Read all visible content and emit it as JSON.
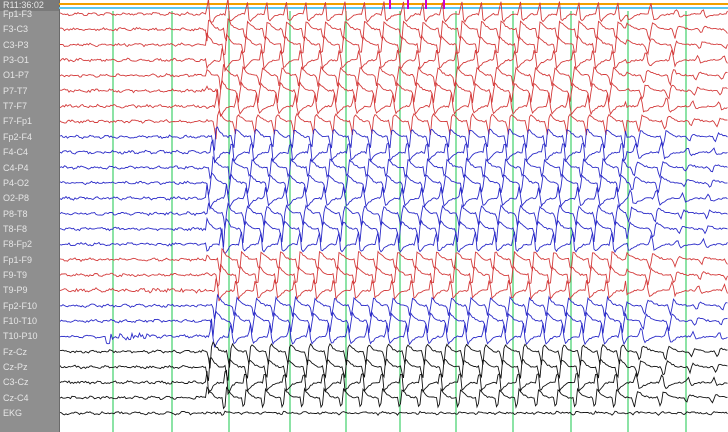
{
  "viewer": {
    "timestamp": "R11:36:02",
    "channels": [
      {
        "label": "Fp1-F3",
        "color": "#d43c3c"
      },
      {
        "label": "F3-C3",
        "color": "#d43c3c"
      },
      {
        "label": "C3-P3",
        "color": "#d43c3c"
      },
      {
        "label": "P3-O1",
        "color": "#d43c3c"
      },
      {
        "label": "O1-P7",
        "color": "#d43c3c"
      },
      {
        "label": "P7-T7",
        "color": "#d43c3c"
      },
      {
        "label": "T7-F7",
        "color": "#d43c3c"
      },
      {
        "label": "F7-Fp1",
        "color": "#d43c3c"
      },
      {
        "label": "Fp2-F4",
        "color": "#2b2bc8"
      },
      {
        "label": "F4-C4",
        "color": "#2b2bc8"
      },
      {
        "label": "C4-P4",
        "color": "#2b2bc8"
      },
      {
        "label": "P4-O2",
        "color": "#2b2bc8"
      },
      {
        "label": "O2-P8",
        "color": "#2b2bc8"
      },
      {
        "label": "P8-T8",
        "color": "#2b2bc8"
      },
      {
        "label": "T8-F8",
        "color": "#2b2bc8"
      },
      {
        "label": "F8-Fp2",
        "color": "#2b2bc8"
      },
      {
        "label": "Fp1-F9",
        "color": "#d43c3c"
      },
      {
        "label": "F9-T9",
        "color": "#d43c3c"
      },
      {
        "label": "T9-P9",
        "color": "#d43c3c"
      },
      {
        "label": "Fp2-F10",
        "color": "#2b2bc8"
      },
      {
        "label": "F10-T10",
        "color": "#2b2bc8"
      },
      {
        "label": "T10-P10",
        "color": "#2b2bc8"
      },
      {
        "label": "Fz-Cz",
        "color": "#111111"
      },
      {
        "label": "Cz-Pz",
        "color": "#111111"
      },
      {
        "label": "C3-Cz",
        "color": "#111111"
      },
      {
        "label": "Cz-C4",
        "color": "#111111"
      },
      {
        "label": "EKG",
        "color": "#111111"
      }
    ],
    "seizure_onset_fraction": 0.215,
    "colors": {
      "sidebar_bg": "#8f8f8f",
      "label_text": "#e6e6e6",
      "time_grid": "#3fd06a",
      "marker_bar_orange": "#f2a000",
      "marker_bar_cyan": "#5bc8f0",
      "event_marker": "#d000d0"
    }
  }
}
